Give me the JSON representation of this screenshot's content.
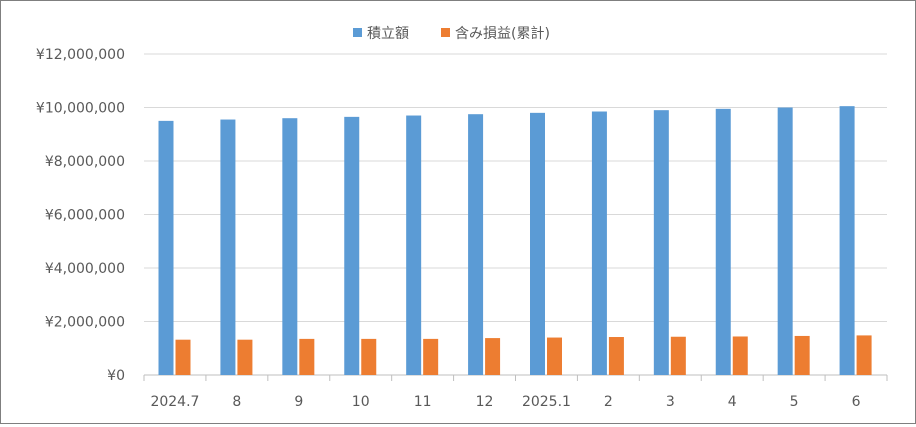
{
  "chart_data": {
    "type": "bar",
    "title": "",
    "xlabel": "",
    "ylabel": "",
    "categories": [
      "2024.7",
      "8",
      "9",
      "10",
      "11",
      "12",
      "2025.1",
      "2",
      "3",
      "4",
      "5",
      "6"
    ],
    "series": [
      {
        "name": "積立額",
        "color": "#5b9bd5",
        "values": [
          9500000,
          9550000,
          9600000,
          9650000,
          9700000,
          9750000,
          9800000,
          9850000,
          9900000,
          9950000,
          10000000,
          10050000
        ]
      },
      {
        "name": "含み損益(累計)",
        "color": "#ed7d31",
        "values": [
          1320000,
          1320000,
          1350000,
          1350000,
          1350000,
          1380000,
          1400000,
          1420000,
          1430000,
          1440000,
          1460000,
          1480000
        ]
      }
    ],
    "ylim": [
      0,
      12000000
    ],
    "yticks": [
      0,
      2000000,
      4000000,
      6000000,
      8000000,
      10000000,
      12000000
    ],
    "ytick_labels": [
      "¥0",
      "¥2,000,000",
      "¥4,000,000",
      "¥6,000,000",
      "¥8,000,000",
      "¥10,000,000",
      "¥12,000,000"
    ],
    "grid": true,
    "legend_position": "top"
  }
}
